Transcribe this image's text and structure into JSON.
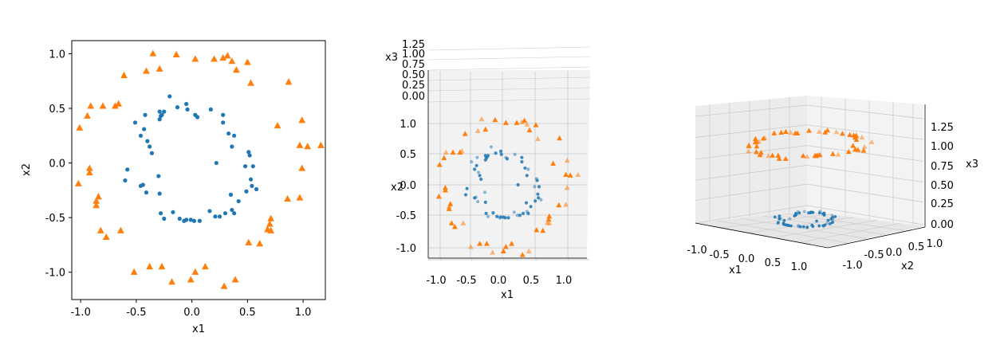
{
  "colors": {
    "inner": "#1f77b4",
    "outer": "#ff7f0e",
    "pane": "#f2f2f2",
    "pane_dark": "#e8e8e8",
    "grid": "#c8c8c8"
  },
  "chart_data": [
    {
      "type": "scatter",
      "panel": "2d",
      "xlabel": "x1",
      "ylabel": "x2",
      "xlim": [
        -1.08,
        1.2
      ],
      "ylim": [
        -1.25,
        1.12
      ],
      "xticks": [
        "-1.0",
        "-0.5",
        "0.0",
        "0.5",
        "1.0"
      ],
      "xtick_values": [
        -1.0,
        -0.5,
        0.0,
        0.5,
        1.0
      ],
      "yticks": [
        "-1.0",
        "-0.5",
        "0.0",
        "0.5",
        "1.0"
      ],
      "ytick_values": [
        -1.0,
        -0.5,
        0.0,
        0.5,
        1.0
      ],
      "series": [
        {
          "marker": "circle",
          "color_key": "inner",
          "points": [
            [
              -0.2,
              0.61
            ],
            [
              -0.05,
              0.54
            ],
            [
              -0.04,
              0.49
            ],
            [
              0.03,
              0.44
            ],
            [
              0.05,
              0.42
            ],
            [
              -0.13,
              0.51
            ],
            [
              0.17,
              0.49
            ],
            [
              0.28,
              0.44
            ],
            [
              -0.29,
              0.47
            ],
            [
              -0.42,
              0.44
            ],
            [
              -0.27,
              0.44
            ],
            [
              -0.29,
              0.4
            ],
            [
              -0.28,
              0.43
            ],
            [
              -0.25,
              0.47
            ],
            [
              0.28,
              0.37
            ],
            [
              -0.51,
              0.37
            ],
            [
              -0.43,
              0.31
            ],
            [
              -0.46,
              0.25
            ],
            [
              -0.4,
              0.2
            ],
            [
              -0.38,
              0.15
            ],
            [
              -0.36,
              0.09
            ],
            [
              0.38,
              0.25
            ],
            [
              0.33,
              0.27
            ],
            [
              0.36,
              0.15
            ],
            [
              0.51,
              0.1
            ],
            [
              0.52,
              0.07
            ],
            [
              0.22,
              0.0
            ],
            [
              0.48,
              -0.03
            ],
            [
              0.55,
              -0.03
            ],
            [
              -0.58,
              -0.06
            ],
            [
              -0.3,
              -0.12
            ],
            [
              -0.6,
              -0.16
            ],
            [
              0.53,
              -0.15
            ],
            [
              -0.44,
              -0.2
            ],
            [
              -0.46,
              -0.21
            ],
            [
              0.54,
              -0.21
            ],
            [
              0.58,
              -0.24
            ],
            [
              0.49,
              -0.26
            ],
            [
              0.35,
              -0.29
            ],
            [
              -0.41,
              -0.27
            ],
            [
              -0.29,
              -0.28
            ],
            [
              0.42,
              -0.35
            ],
            [
              0.36,
              -0.43
            ],
            [
              -0.28,
              -0.46
            ],
            [
              -0.17,
              -0.45
            ],
            [
              0.16,
              -0.44
            ],
            [
              0.3,
              -0.46
            ],
            [
              0.38,
              -0.46
            ],
            [
              -0.25,
              -0.51
            ],
            [
              -0.11,
              -0.51
            ],
            [
              -0.05,
              -0.52
            ],
            [
              -0.07,
              -0.53
            ],
            [
              0.02,
              -0.53
            ],
            [
              0.07,
              -0.53
            ],
            [
              0.21,
              -0.49
            ],
            [
              0.25,
              -0.49
            ],
            [
              -0.01,
              -0.52
            ]
          ]
        },
        {
          "marker": "triangle",
          "color_key": "outer",
          "points": [
            [
              -0.35,
              1.0
            ],
            [
              -0.14,
              0.99
            ],
            [
              0.03,
              0.95
            ],
            [
              0.28,
              0.96
            ],
            [
              0.32,
              0.98
            ],
            [
              0.5,
              0.92
            ],
            [
              0.36,
              0.93
            ],
            [
              0.2,
              0.95
            ],
            [
              -0.61,
              0.8
            ],
            [
              -0.41,
              0.84
            ],
            [
              -0.29,
              0.86
            ],
            [
              0.4,
              0.85
            ],
            [
              0.53,
              0.73
            ],
            [
              0.87,
              0.74
            ],
            [
              -1.01,
              0.32
            ],
            [
              -0.91,
              0.52
            ],
            [
              -0.94,
              0.43
            ],
            [
              -0.8,
              0.52
            ],
            [
              -0.66,
              0.54
            ],
            [
              -0.69,
              0.52
            ],
            [
              0.77,
              0.34
            ],
            [
              0.99,
              0.39
            ],
            [
              0.97,
              0.16
            ],
            [
              1.04,
              0.15
            ],
            [
              1.16,
              0.16
            ],
            [
              -0.92,
              -0.05
            ],
            [
              -0.92,
              -0.09
            ],
            [
              0.99,
              -0.05
            ],
            [
              -1.02,
              -0.19
            ],
            [
              -0.84,
              -0.31
            ],
            [
              -0.86,
              -0.35
            ],
            [
              -0.86,
              -0.39
            ],
            [
              0.86,
              -0.33
            ],
            [
              0.97,
              -0.32
            ],
            [
              0.71,
              -0.51
            ],
            [
              0.7,
              -0.56
            ],
            [
              0.68,
              -0.61
            ],
            [
              -0.82,
              -0.62
            ],
            [
              -0.77,
              -0.68
            ],
            [
              -0.64,
              -0.62
            ],
            [
              0.51,
              -0.73
            ],
            [
              0.61,
              -0.74
            ],
            [
              0.71,
              -0.62
            ],
            [
              -0.38,
              -0.95
            ],
            [
              -0.27,
              -0.95
            ],
            [
              -0.52,
              -1.0
            ],
            [
              0.03,
              -1.0
            ],
            [
              0.12,
              -0.95
            ],
            [
              -0.18,
              -1.09
            ],
            [
              -0.01,
              -1.07
            ],
            [
              0.29,
              -1.13
            ],
            [
              0.39,
              -1.07
            ]
          ]
        }
      ]
    },
    {
      "type": "scatter",
      "panel": "3d",
      "view": "front, elevated",
      "xlabel": "x1",
      "ylabel": "x2",
      "zlabel": "x3",
      "xticks": [
        "-1.0",
        "-0.5",
        "0.0",
        "0.5",
        "1.0"
      ],
      "yticks": [
        "-1.0",
        "-0.5",
        "0.0",
        "0.5",
        "1.0"
      ],
      "zticks": [
        "0.00",
        "0.25",
        "0.50",
        "0.75",
        "1.00",
        "1.25"
      ]
    },
    {
      "type": "scatter",
      "panel": "3d",
      "view": "oblique, low elevation",
      "xlabel": "x1",
      "ylabel": "x2",
      "zlabel": "x3",
      "xticks": [
        "-1.0",
        "-0.5",
        "0.0",
        "0.5",
        "1.0"
      ],
      "yticks": [
        "-1.0",
        "-0.5",
        "0.0",
        "0.5",
        "1.0"
      ],
      "zticks": [
        "0.00",
        "0.25",
        "0.50",
        "0.75",
        "1.00",
        "1.25"
      ]
    }
  ]
}
